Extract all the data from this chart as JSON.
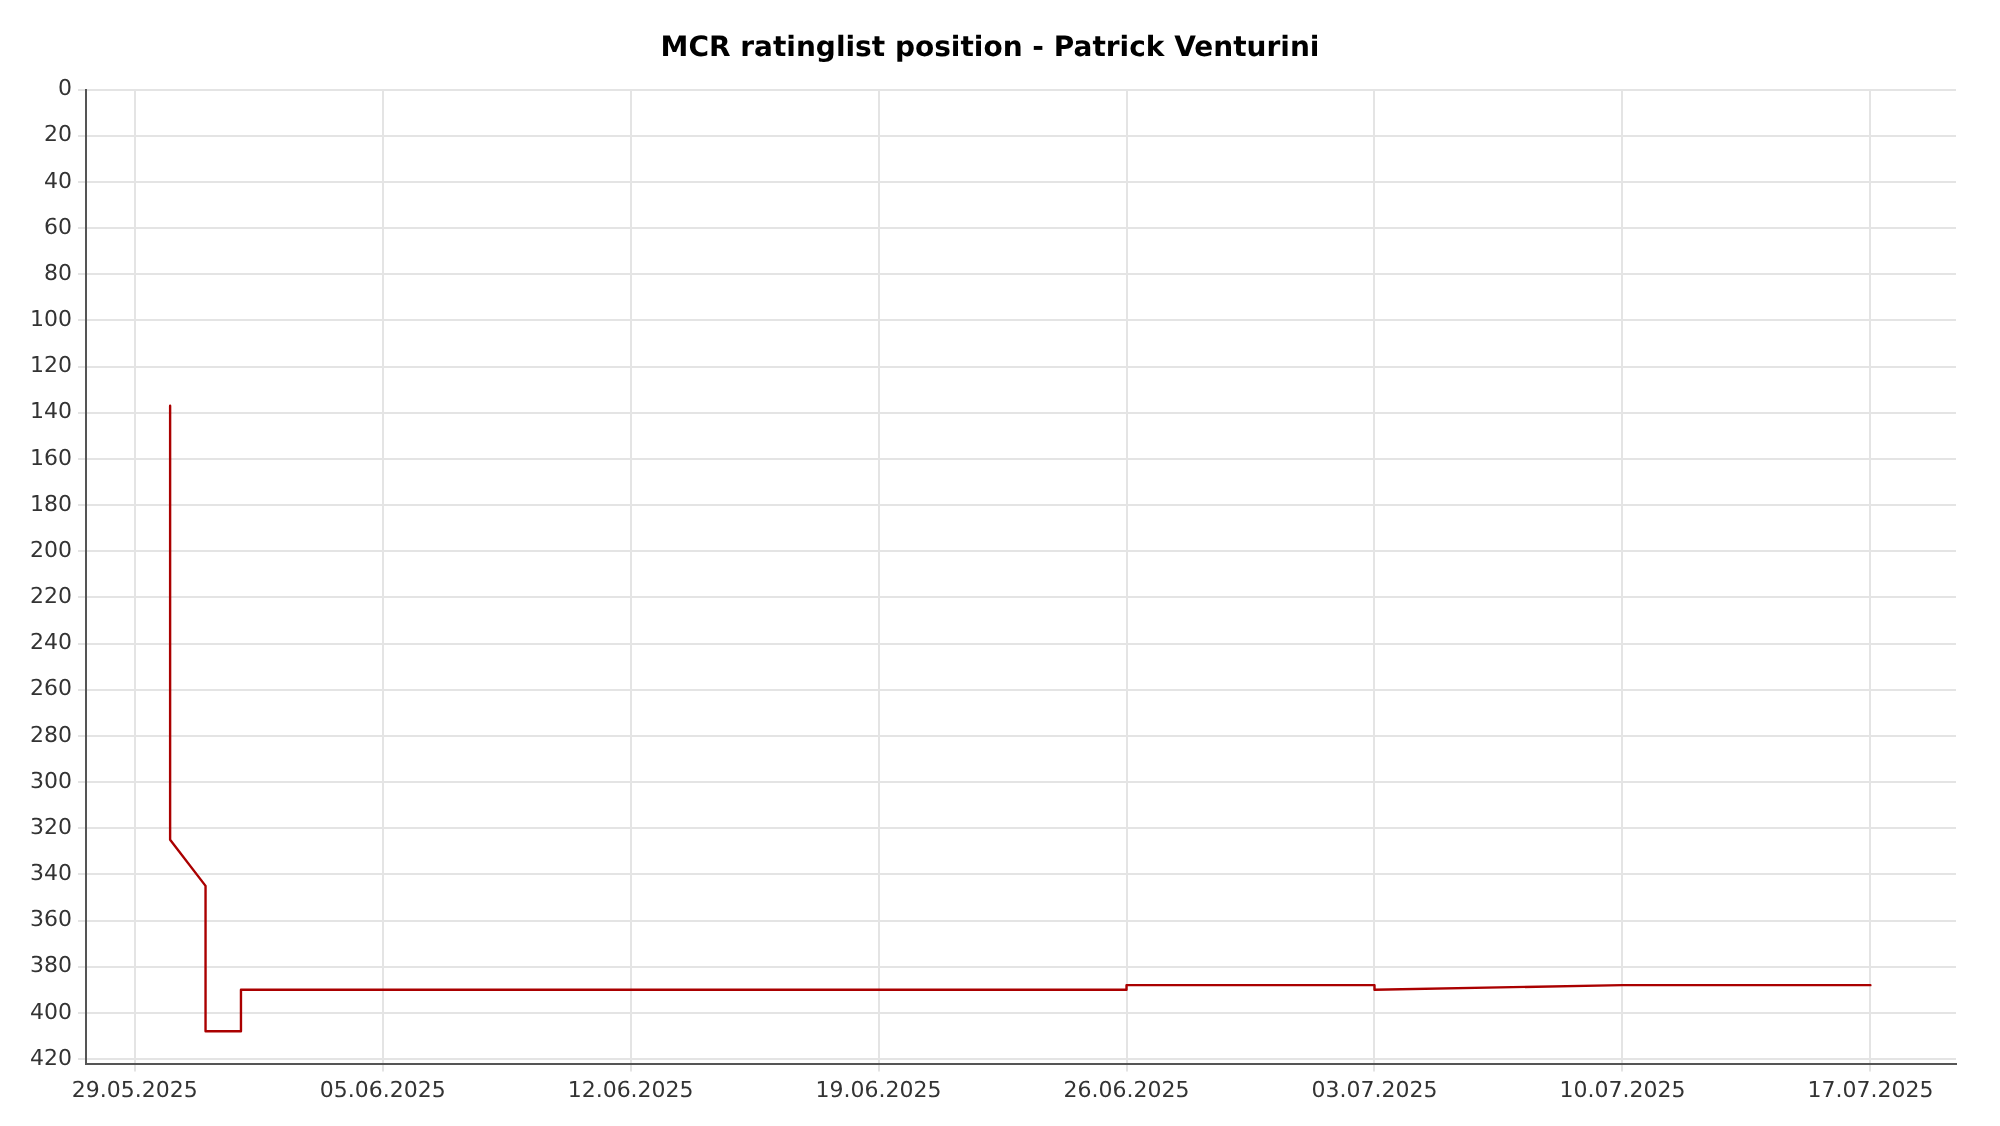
{
  "chart_data": {
    "type": "line",
    "title": "MCR ratinglist position - Patrick Venturini",
    "series": [
      {
        "color": "#aa0000",
        "x": [
          "2025-05-30",
          "2025-05-30",
          "2025-05-31",
          "2025-05-31",
          "2025-06-01",
          "2025-06-01",
          "2025-06-05",
          "2025-06-26",
          "2025-06-26",
          "2025-07-03",
          "2025-07-03",
          "2025-07-10",
          "2025-07-17"
        ],
        "values": [
          137,
          325,
          345,
          408,
          408,
          390,
          390,
          390,
          388,
          388,
          390,
          388,
          388
        ]
      }
    ],
    "xlim": [
      "2025-05-27T15:00",
      "2025-07-19T10:00"
    ],
    "xticks": [
      {
        "value": "2025-05-29",
        "label": "29.05.2025"
      },
      {
        "value": "2025-06-05",
        "label": "05.06.2025"
      },
      {
        "value": "2025-06-12",
        "label": "12.06.2025"
      },
      {
        "value": "2025-06-19",
        "label": "19.06.2025"
      },
      {
        "value": "2025-06-26",
        "label": "26.06.2025"
      },
      {
        "value": "2025-07-03",
        "label": "03.07.2025"
      },
      {
        "value": "2025-07-10",
        "label": "10.07.2025"
      },
      {
        "value": "2025-07-17",
        "label": "17.07.2025"
      }
    ],
    "ylim": [
      422,
      0
    ],
    "yticks": [
      0,
      20,
      40,
      60,
      80,
      100,
      120,
      140,
      160,
      180,
      200,
      220,
      240,
      260,
      280,
      300,
      320,
      340,
      360,
      380,
      400,
      420
    ],
    "grid": true,
    "legend": false,
    "marker": "none",
    "line_style": "solid"
  }
}
